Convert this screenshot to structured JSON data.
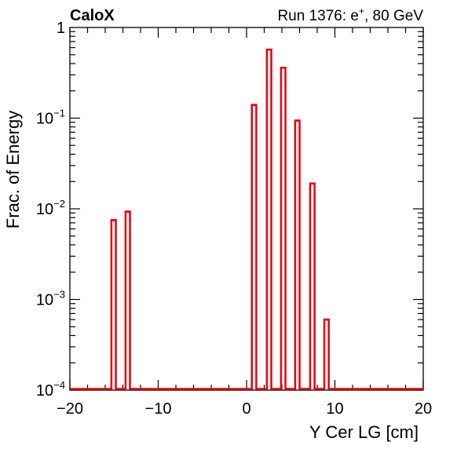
{
  "header": {
    "left_text": "CaloX",
    "right_run": "Run 1376: e",
    "right_sup": "+",
    "right_rest": ", 80 GeV"
  },
  "chart_data": {
    "type": "histogram",
    "xlabel": "Y Cer LG [cm]",
    "ylabel": "Frac. of Energy",
    "xlim": [
      -20,
      20
    ],
    "ylim": [
      0.0001,
      1
    ],
    "y_scale": "log",
    "grid": false,
    "line_color": "#e8000b",
    "x_ticks": [
      -20,
      -10,
      0,
      10,
      20
    ],
    "x_tick_labels": [
      "−20",
      "−10",
      "0",
      "10",
      "20"
    ],
    "y_tick_labels": [
      {
        "value": 1,
        "base": "1",
        "exp": ""
      },
      {
        "value": 0.1,
        "base": "10",
        "exp": "−1"
      },
      {
        "value": 0.01,
        "base": "10",
        "exp": "−2"
      },
      {
        "value": 0.001,
        "base": "10",
        "exp": "−3"
      },
      {
        "value": 0.0001,
        "base": "10",
        "exp": "−4"
      }
    ],
    "bins": [
      {
        "x_low": -15.3,
        "x_high": -14.8,
        "value": 0.0075
      },
      {
        "x_low": -13.7,
        "x_high": -13.2,
        "value": 0.0093
      },
      {
        "x_low": 0.6,
        "x_high": 1.1,
        "value": 0.14
      },
      {
        "x_low": 2.3,
        "x_high": 2.8,
        "value": 0.57
      },
      {
        "x_low": 3.9,
        "x_high": 4.4,
        "value": 0.36
      },
      {
        "x_low": 5.5,
        "x_high": 6.0,
        "value": 0.094
      },
      {
        "x_low": 7.2,
        "x_high": 7.7,
        "value": 0.019
      },
      {
        "x_low": 8.8,
        "x_high": 9.3,
        "value": 0.0006
      }
    ]
  }
}
